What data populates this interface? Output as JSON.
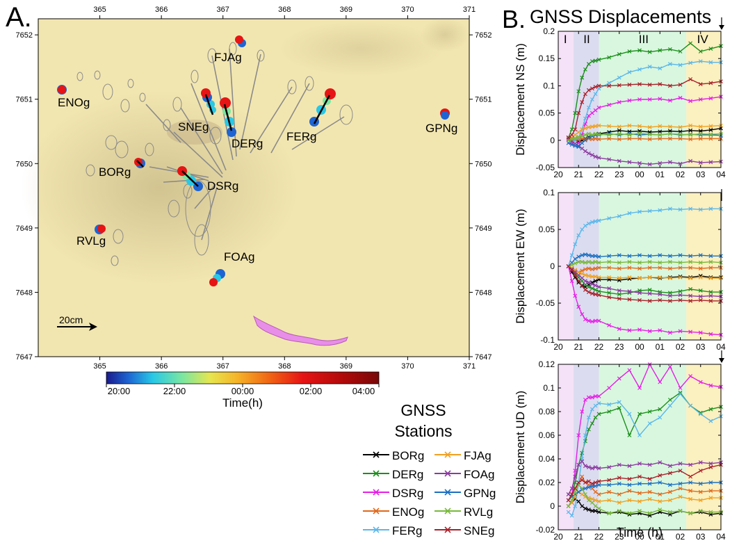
{
  "panel_a": {
    "letter": "A.",
    "x_ticks": [
      "365",
      "366",
      "367",
      "368",
      "369",
      "370",
      "371"
    ],
    "y_ticks": [
      "7652",
      "7651",
      "7650",
      "7649",
      "7648",
      "7647"
    ],
    "scale_label": "20cm",
    "stations": [
      {
        "name": "ENOg"
      },
      {
        "name": "FJAg"
      },
      {
        "name": "SNEg"
      },
      {
        "name": "DERg"
      },
      {
        "name": "FERg"
      },
      {
        "name": "GPNg"
      },
      {
        "name": "BORg"
      },
      {
        "name": "DSRg"
      },
      {
        "name": "RVLg"
      },
      {
        "name": "FOAg"
      }
    ],
    "colorbar": {
      "ticks": [
        "20:00",
        "22:00",
        "00:00",
        "02:00",
        "04:00"
      ],
      "label": "Time(h)"
    }
  },
  "panel_b": {
    "letter": "B.",
    "title": "GNSS Displacements",
    "phases": [
      "I",
      "II",
      "III",
      "IV"
    ],
    "x_ticks": [
      "20",
      "21",
      "22",
      "23",
      "00",
      "01",
      "02",
      "03",
      "04"
    ],
    "x_label": "Time (h)"
  },
  "legend": {
    "title_line1": "GNSS",
    "title_line2": "Stations"
  },
  "chart_data": [
    {
      "type": "line",
      "title": "",
      "ylabel": "Displacement NS (m)",
      "ylim": [
        -0.05,
        0.2
      ],
      "y_ticks": [
        "0.2",
        "0.15",
        "0.1",
        "0.05",
        "0",
        "-0.05"
      ],
      "x": [
        20.5,
        20.67,
        20.83,
        21,
        21.17,
        21.33,
        21.5,
        21.67,
        21.83,
        22,
        22.5,
        23,
        23.5,
        24,
        24.5,
        25,
        25.5,
        26,
        26.5,
        27,
        27.5,
        28
      ],
      "series": [
        {
          "name": "BORg",
          "color": "#000000",
          "values": [
            0.005,
            0.003,
            0.0,
            -0.002,
            0.0,
            0.003,
            0.006,
            0.008,
            0.01,
            0.012,
            0.015,
            0.018,
            0.016,
            0.017,
            0.015,
            0.016,
            0.017,
            0.016,
            0.018,
            0.017,
            0.019,
            0.022
          ]
        },
        {
          "name": "DERg",
          "color": "#1a8f1a",
          "values": [
            0.005,
            0.02,
            0.05,
            0.09,
            0.115,
            0.13,
            0.14,
            0.145,
            0.146,
            0.148,
            0.152,
            0.158,
            0.163,
            0.165,
            0.162,
            0.165,
            0.167,
            0.163,
            0.178,
            0.163,
            0.168,
            0.173
          ]
        },
        {
          "name": "DSRg",
          "color": "#e61ee6",
          "values": [
            0.0,
            -0.005,
            -0.01,
            -0.005,
            0.01,
            0.03,
            0.045,
            0.05,
            0.055,
            0.06,
            0.065,
            0.07,
            0.073,
            0.075,
            0.075,
            0.076,
            0.073,
            0.078,
            0.072,
            0.075,
            0.077,
            0.08
          ]
        },
        {
          "name": "ENOg",
          "color": "#e0681a",
          "values": [
            0.002,
            0.0,
            0.001,
            0.002,
            0.003,
            0.002,
            0.003,
            0.002,
            0.003,
            0.002,
            0.003,
            0.002,
            0.003,
            0.003,
            0.002,
            0.003,
            0.003,
            0.003,
            0.002,
            0.003,
            0.003,
            0.003
          ]
        },
        {
          "name": "FERg",
          "color": "#5ab7ea",
          "values": [
            -0.005,
            -0.002,
            0.0,
            0.005,
            0.02,
            0.04,
            0.06,
            0.075,
            0.085,
            0.095,
            0.105,
            0.115,
            0.125,
            0.13,
            0.135,
            0.132,
            0.14,
            0.138,
            0.142,
            0.145,
            0.143,
            0.143
          ]
        },
        {
          "name": "FJAg",
          "color": "#f0a020",
          "values": [
            0.0,
            0.005,
            0.01,
            0.015,
            0.02,
            0.022,
            0.024,
            0.025,
            0.026,
            0.027,
            0.026,
            0.025,
            0.027,
            0.026,
            0.024,
            0.026,
            0.025,
            0.024,
            0.027,
            0.025,
            0.026,
            0.027
          ]
        },
        {
          "name": "FOAg",
          "color": "#8b3aa0",
          "values": [
            0.002,
            -0.002,
            -0.006,
            -0.01,
            -0.015,
            -0.02,
            -0.024,
            -0.027,
            -0.03,
            -0.032,
            -0.035,
            -0.038,
            -0.04,
            -0.042,
            -0.044,
            -0.042,
            -0.04,
            -0.043,
            -0.038,
            -0.041,
            -0.04,
            -0.039
          ]
        },
        {
          "name": "GPNg",
          "color": "#1a6fc0",
          "values": [
            -0.005,
            -0.008,
            -0.01,
            -0.012,
            -0.005,
            0.0,
            0.005,
            0.008,
            0.01,
            0.01,
            0.012,
            0.01,
            0.012,
            0.01,
            0.011,
            0.01,
            0.012,
            0.01,
            0.011,
            0.01,
            0.01,
            0.009
          ]
        },
        {
          "name": "RVLg",
          "color": "#78b83a",
          "values": [
            0.0,
            0.002,
            0.004,
            0.006,
            0.008,
            0.01,
            0.012,
            0.01,
            0.012,
            0.011,
            0.01,
            0.012,
            0.01,
            0.013,
            0.011,
            0.01,
            0.012,
            0.011,
            0.01,
            0.012,
            0.011,
            0.012
          ]
        },
        {
          "name": "SNEg",
          "color": "#a8202a",
          "values": [
            0.005,
            0.01,
            0.02,
            0.05,
            0.07,
            0.085,
            0.092,
            0.095,
            0.098,
            0.1,
            0.1,
            0.101,
            0.102,
            0.103,
            0.102,
            0.103,
            0.1,
            0.102,
            0.112,
            0.103,
            0.105,
            0.108
          ]
        }
      ]
    },
    {
      "type": "line",
      "title": "",
      "ylabel": "Displacement EW (m)",
      "ylim": [
        -0.1,
        0.1
      ],
      "y_ticks": [
        "0.1",
        "0.05",
        "0",
        "-0.05",
        "-0.1"
      ],
      "x": [
        20.5,
        20.67,
        20.83,
        21,
        21.17,
        21.33,
        21.5,
        21.67,
        21.83,
        22,
        22.5,
        23,
        23.5,
        24,
        24.5,
        25,
        25.5,
        26,
        26.5,
        27,
        27.5,
        28
      ],
      "series": [
        {
          "name": "BORg",
          "color": "#000000",
          "values": [
            0.0,
            -0.008,
            -0.015,
            -0.022,
            -0.026,
            -0.028,
            -0.025,
            -0.022,
            -0.02,
            -0.018,
            -0.018,
            -0.019,
            -0.017,
            -0.016,
            -0.015,
            -0.016,
            -0.015,
            -0.014,
            -0.015,
            -0.013,
            -0.015,
            -0.015
          ]
        },
        {
          "name": "DERg",
          "color": "#1a8f1a",
          "values": [
            0.0,
            -0.005,
            -0.01,
            -0.015,
            -0.02,
            -0.025,
            -0.028,
            -0.03,
            -0.032,
            -0.034,
            -0.036,
            -0.038,
            -0.036,
            -0.033,
            -0.032,
            -0.035,
            -0.036,
            -0.034,
            -0.031,
            -0.033,
            -0.035,
            -0.035
          ]
        },
        {
          "name": "DSRg",
          "color": "#e61ee6",
          "values": [
            0.0,
            -0.02,
            -0.04,
            -0.055,
            -0.065,
            -0.072,
            -0.074,
            -0.075,
            -0.074,
            -0.074,
            -0.08,
            -0.085,
            -0.087,
            -0.086,
            -0.088,
            -0.087,
            -0.09,
            -0.088,
            -0.089,
            -0.09,
            -0.092,
            -0.093
          ]
        },
        {
          "name": "ENOg",
          "color": "#e0681a",
          "values": [
            0.0,
            -0.003,
            -0.006,
            -0.008,
            -0.006,
            -0.004,
            -0.003,
            -0.004,
            -0.003,
            -0.002,
            -0.002,
            -0.003,
            -0.002,
            -0.003,
            -0.002,
            -0.002,
            -0.003,
            -0.002,
            -0.002,
            -0.003,
            -0.002,
            -0.002
          ]
        },
        {
          "name": "FERg",
          "color": "#5ab7ea",
          "values": [
            0.0,
            0.015,
            0.03,
            0.042,
            0.05,
            0.055,
            0.058,
            0.06,
            0.061,
            0.062,
            0.065,
            0.068,
            0.072,
            0.074,
            0.075,
            0.076,
            0.078,
            0.077,
            0.078,
            0.077,
            0.078,
            0.078
          ]
        },
        {
          "name": "FJAg",
          "color": "#f0a020",
          "values": [
            0.0,
            -0.002,
            -0.005,
            -0.008,
            -0.01,
            -0.012,
            -0.013,
            -0.014,
            -0.014,
            -0.015,
            -0.015,
            -0.016,
            -0.015,
            -0.016,
            -0.015,
            -0.015,
            -0.016,
            -0.015,
            -0.016,
            -0.015,
            -0.016,
            -0.016
          ]
        },
        {
          "name": "FOAg",
          "color": "#8b3aa0",
          "values": [
            0.0,
            -0.004,
            -0.008,
            -0.012,
            -0.016,
            -0.02,
            -0.022,
            -0.024,
            -0.026,
            -0.028,
            -0.03,
            -0.033,
            -0.034,
            -0.036,
            -0.037,
            -0.038,
            -0.04,
            -0.039,
            -0.04,
            -0.041,
            -0.04,
            -0.041
          ]
        },
        {
          "name": "GPNg",
          "color": "#1a6fc0",
          "values": [
            0.0,
            0.005,
            0.01,
            0.013,
            0.015,
            0.016,
            0.015,
            0.014,
            0.014,
            0.013,
            0.014,
            0.015,
            0.014,
            0.015,
            0.014,
            0.015,
            0.014,
            0.015,
            0.014,
            0.015,
            0.014,
            0.014
          ]
        },
        {
          "name": "RVLg",
          "color": "#78b83a",
          "values": [
            0.0,
            0.002,
            0.004,
            0.006,
            0.006,
            0.005,
            0.006,
            0.005,
            0.006,
            0.005,
            0.006,
            0.005,
            0.006,
            0.005,
            0.006,
            0.005,
            0.006,
            0.005,
            0.006,
            0.005,
            0.006,
            0.005
          ]
        },
        {
          "name": "SNEg",
          "color": "#a8202a",
          "values": [
            0.0,
            -0.005,
            -0.012,
            -0.02,
            -0.027,
            -0.032,
            -0.035,
            -0.037,
            -0.038,
            -0.039,
            -0.042,
            -0.044,
            -0.045,
            -0.046,
            -0.047,
            -0.046,
            -0.047,
            -0.046,
            -0.047,
            -0.046,
            -0.047,
            -0.047
          ]
        }
      ]
    },
    {
      "type": "line",
      "title": "",
      "ylabel": "Displacement UD (m)",
      "ylim": [
        -0.02,
        0.12
      ],
      "y_ticks": [
        "0.12",
        "0.1",
        "0.08",
        "0.06",
        "0.04",
        "0.02",
        "0",
        "-0.02"
      ],
      "x": [
        20.5,
        20.67,
        20.83,
        21,
        21.17,
        21.33,
        21.5,
        21.67,
        21.83,
        22,
        22.5,
        23,
        23.5,
        24,
        24.5,
        25,
        25.5,
        26,
        26.5,
        27,
        27.5,
        28
      ],
      "series": [
        {
          "name": "BORg",
          "color": "#000000",
          "values": [
            0.0,
            0.003,
            0.006,
            0.004,
            0.0,
            -0.002,
            -0.003,
            -0.004,
            -0.004,
            -0.005,
            -0.006,
            -0.005,
            -0.007,
            -0.006,
            -0.008,
            -0.005,
            -0.007,
            -0.004,
            -0.006,
            -0.005,
            -0.007,
            -0.006
          ]
        },
        {
          "name": "DERg",
          "color": "#1a8f1a",
          "values": [
            0.01,
            0.008,
            0.02,
            0.035,
            0.045,
            0.055,
            0.065,
            0.07,
            0.075,
            0.078,
            0.08,
            0.083,
            0.06,
            0.078,
            0.08,
            0.082,
            0.09,
            0.096,
            0.085,
            0.079,
            0.082,
            0.084
          ]
        },
        {
          "name": "DSRg",
          "color": "#e61ee6",
          "values": [
            0.005,
            0.01,
            0.03,
            0.06,
            0.08,
            0.09,
            0.092,
            0.092,
            0.093,
            0.093,
            0.1,
            0.108,
            0.115,
            0.1,
            0.12,
            0.105,
            0.118,
            0.1,
            0.11,
            0.105,
            0.102,
            0.101
          ]
        },
        {
          "name": "ENOg",
          "color": "#e0681a",
          "values": [
            0.005,
            0.01,
            0.015,
            0.02,
            0.025,
            0.02,
            0.018,
            0.015,
            0.012,
            0.01,
            0.012,
            0.01,
            0.013,
            0.011,
            0.012,
            0.01,
            0.012,
            0.015,
            0.013,
            0.012,
            0.013,
            0.013
          ]
        },
        {
          "name": "FERg",
          "color": "#5ab7ea",
          "values": [
            -0.005,
            -0.008,
            0.0,
            0.02,
            0.04,
            0.06,
            0.075,
            0.082,
            0.085,
            0.087,
            0.086,
            0.088,
            0.078,
            0.06,
            0.07,
            0.075,
            0.085,
            0.095,
            0.085,
            0.078,
            0.072,
            0.076
          ]
        },
        {
          "name": "FJAg",
          "color": "#f0a020",
          "values": [
            0.0,
            0.003,
            0.008,
            0.012,
            0.01,
            0.008,
            0.007,
            0.006,
            0.005,
            0.004,
            0.005,
            0.003,
            0.005,
            0.004,
            0.006,
            0.004,
            0.005,
            0.008,
            0.006,
            0.005,
            0.007,
            0.007
          ]
        },
        {
          "name": "FOAg",
          "color": "#8b3aa0",
          "values": [
            0.01,
            0.015,
            0.025,
            0.035,
            0.038,
            0.034,
            0.033,
            0.032,
            0.033,
            0.032,
            0.033,
            0.035,
            0.034,
            0.036,
            0.035,
            0.037,
            0.034,
            0.036,
            0.035,
            0.037,
            0.036,
            0.037
          ]
        },
        {
          "name": "GPNg",
          "color": "#1a6fc0",
          "values": [
            0.005,
            0.008,
            0.01,
            0.012,
            0.014,
            0.015,
            0.016,
            0.017,
            0.017,
            0.018,
            0.018,
            0.019,
            0.018,
            0.019,
            0.019,
            0.02,
            0.018,
            0.019,
            0.02,
            0.019,
            0.02,
            0.02
          ]
        },
        {
          "name": "RVLg",
          "color": "#78b83a",
          "values": [
            0.0,
            0.005,
            0.012,
            0.018,
            0.015,
            0.01,
            0.005,
            0.003,
            0.0,
            -0.002,
            -0.006,
            -0.004,
            -0.006,
            -0.004,
            -0.006,
            -0.003,
            -0.005,
            -0.004,
            -0.006,
            -0.004,
            -0.005,
            -0.005
          ]
        },
        {
          "name": "SNEg",
          "color": "#a8202a",
          "values": [
            0.005,
            0.01,
            0.015,
            0.02,
            0.022,
            0.02,
            0.021,
            0.019,
            0.02,
            0.021,
            0.022,
            0.024,
            0.023,
            0.025,
            0.023,
            0.026,
            0.028,
            0.03,
            0.025,
            0.03,
            0.033,
            0.035
          ]
        }
      ]
    }
  ]
}
